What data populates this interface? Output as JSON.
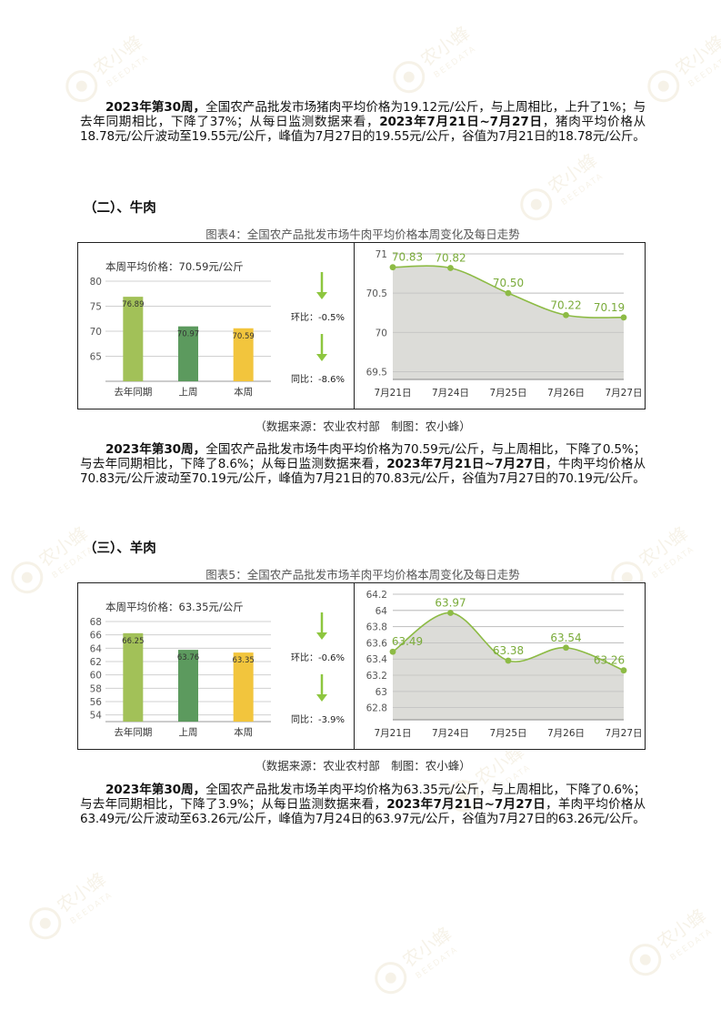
{
  "watermark": {
    "logo_text": "农小蜂",
    "logo_subtext": "BEEDATA"
  },
  "paragraphs": {
    "pork": {
      "lead": "2023年第30周，",
      "mid": "全国农产品批发市场猪肉平均价格为19.12元/公斤，与上周相比，上升了1%；与去年同期相比，下降了37%；从每日监测数据来看，",
      "date_range": "2023年7月21日~7月27日",
      "tail": "，猪肉平均价格从18.78元/公斤波动至19.55元/公斤，峰值为7月27日的19.55元/公斤，谷值为7月21日的18.78元/公斤。"
    },
    "beef": {
      "lead": "2023年第30周，",
      "mid": "全国农产品批发市场牛肉平均价格为70.59元/公斤，与上周相比，下降了0.5%；与去年同期相比，下降了8.6%；从每日监测数据来看，",
      "date_range": "2023年7月21日~7月27日",
      "tail": "，牛肉平均价格从70.83元/公斤波动至70.19元/公斤，峰值为7月21日的70.83元/公斤，谷值为7月27日的70.19元/公斤。"
    },
    "mutton": {
      "lead": "2023年第30周，",
      "mid": "全国农产品批发市场羊肉平均价格为63.35元/公斤，与上周相比，下降了0.6%；与去年同期相比，下降了3.9%；从每日监测数据来看，",
      "date_range": "2023年7月21日~7月27日",
      "tail": "，羊肉平均价格从63.49元/公斤波动至63.26元/公斤，峰值为7月24日的63.97元/公斤，谷值为7月27日的63.26元/公斤。"
    }
  },
  "headings": {
    "beef": "（二）、牛肉",
    "mutton": "（三）、羊肉"
  },
  "captions": {
    "beef": "图表4：全国农产品批发市场牛肉平均价格本周变化及每日走势",
    "mutton": "图表5：全国农产品批发市场羊肉平均价格本周变化及每日走势"
  },
  "sources": {
    "beef": "（数据来源：农业农村部　制图：农小蜂）",
    "mutton": "（数据来源：农业农村部　制图：农小蜂）"
  },
  "chart_data": [
    {
      "id": "beef-bar",
      "type": "bar",
      "title": "本周平均价格：70.59元/公斤",
      "categories": [
        "去年同期",
        "上周",
        "本周"
      ],
      "values": [
        76.89,
        70.97,
        70.59
      ],
      "value_labels": [
        "76.89",
        "70.97",
        "70.59"
      ],
      "colors": [
        "#a2c158",
        "#5c9a5e",
        "#f2c53d"
      ],
      "ylim": [
        60,
        80
      ],
      "yticks": [
        65,
        70,
        75,
        80
      ],
      "grid": true,
      "changes": [
        {
          "label": "环比：-0.5%"
        },
        {
          "label": "同比：-8.6%"
        }
      ],
      "arrow_color": "#8dc63f"
    },
    {
      "id": "beef-line",
      "type": "area",
      "categories": [
        "7月21日",
        "7月24日",
        "7月25日",
        "7月26日",
        "7月27日"
      ],
      "values": [
        70.83,
        70.82,
        70.5,
        70.22,
        70.19
      ],
      "value_labels": [
        "70.83",
        "70.82",
        "70.50",
        "70.22",
        "70.19"
      ],
      "ylim": [
        69.4,
        71
      ],
      "yticks": [
        69.5,
        70,
        70.5,
        71
      ],
      "ytick_labels": [
        "69.5",
        "70",
        "70.5",
        "71"
      ],
      "grid": true,
      "line_color": "#8dbb45",
      "fill_color": "#d8d8d4",
      "label_color": "#7aab3a"
    },
    {
      "id": "mutton-bar",
      "type": "bar",
      "title": "本周平均价格：63.35元/公斤",
      "categories": [
        "去年同期",
        "上周",
        "本周"
      ],
      "values": [
        66.25,
        63.76,
        63.35
      ],
      "value_labels": [
        "66.25",
        "63.76",
        "63.35"
      ],
      "colors": [
        "#a2c158",
        "#5c9a5e",
        "#f2c53d"
      ],
      "ylim": [
        53,
        68
      ],
      "yticks": [
        54,
        56,
        58,
        60,
        62,
        64,
        66,
        68
      ],
      "grid": true,
      "changes": [
        {
          "label": "环比：-0.6%"
        },
        {
          "label": "同比：-3.9%"
        }
      ],
      "arrow_color": "#8dc63f"
    },
    {
      "id": "mutton-line",
      "type": "area",
      "categories": [
        "7月21日",
        "7月24日",
        "7月25日",
        "7月26日",
        "7月27日"
      ],
      "values": [
        63.49,
        63.97,
        63.38,
        63.54,
        63.26
      ],
      "value_labels": [
        "63.49",
        "63.97",
        "63.38",
        "63.54",
        "63.26"
      ],
      "ylim": [
        62.65,
        64.2
      ],
      "yticks": [
        62.8,
        63,
        63.2,
        63.4,
        63.6,
        63.8,
        64,
        64.2
      ],
      "ytick_labels": [
        "62.8",
        "63",
        "63.2",
        "63.4",
        "63.6",
        "63.8",
        "64",
        "64.2"
      ],
      "grid": true,
      "line_color": "#8dbb45",
      "fill_color": "#d8d8d4",
      "label_color": "#7aab3a"
    }
  ]
}
